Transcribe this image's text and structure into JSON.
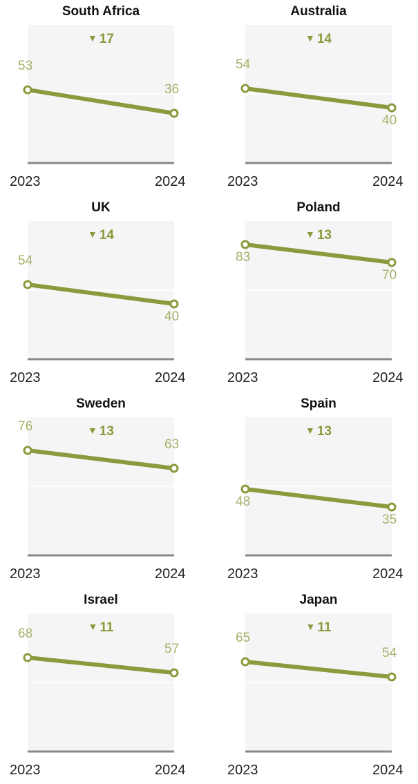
{
  "colors": {
    "line": "#8a9a3c",
    "label": "#a8b06a",
    "plot_bg": "#f5f5f5",
    "axis": "#888888"
  },
  "chart_data": [
    {
      "type": "line",
      "title": "South Africa",
      "change": "17",
      "categories": [
        "2023",
        "2024"
      ],
      "values": [
        53,
        36
      ],
      "ylim": [
        0,
        100
      ]
    },
    {
      "type": "line",
      "title": "Australia",
      "change": "14",
      "categories": [
        "2023",
        "2024"
      ],
      "values": [
        54,
        40
      ],
      "ylim": [
        0,
        100
      ]
    },
    {
      "type": "line",
      "title": "UK",
      "change": "14",
      "categories": [
        "2023",
        "2024"
      ],
      "values": [
        54,
        40
      ],
      "ylim": [
        0,
        100
      ]
    },
    {
      "type": "line",
      "title": "Poland",
      "change": "13",
      "categories": [
        "2023",
        "2024"
      ],
      "values": [
        83,
        70
      ],
      "ylim": [
        0,
        100
      ]
    },
    {
      "type": "line",
      "title": "Sweden",
      "change": "13",
      "categories": [
        "2023",
        "2024"
      ],
      "values": [
        76,
        63
      ],
      "ylim": [
        0,
        100
      ]
    },
    {
      "type": "line",
      "title": "Spain",
      "change": "13",
      "categories": [
        "2023",
        "2024"
      ],
      "values": [
        48,
        35
      ],
      "ylim": [
        0,
        100
      ]
    },
    {
      "type": "line",
      "title": "Israel",
      "change": "11",
      "categories": [
        "2023",
        "2024"
      ],
      "values": [
        68,
        57
      ],
      "ylim": [
        0,
        100
      ]
    },
    {
      "type": "line",
      "title": "Japan",
      "change": "11",
      "categories": [
        "2023",
        "2024"
      ],
      "values": [
        65,
        54
      ],
      "ylim": [
        0,
        100
      ]
    }
  ]
}
